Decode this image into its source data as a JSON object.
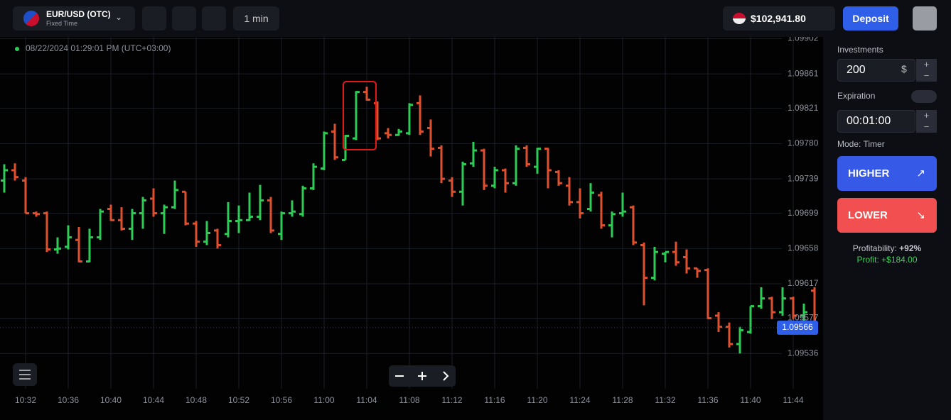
{
  "header": {
    "pair": "EUR/USD (OTC)",
    "mode": "Fixed Time",
    "timeframe": "1 min",
    "balance": "$102,941.80",
    "deposit": "Deposit"
  },
  "panel": {
    "investments_label": "Investments",
    "investment": "200",
    "currency": "$",
    "expiration_label": "Expiration",
    "expiration": "00:01:00",
    "mode": "Mode: Timer",
    "higher": "HIGHER",
    "lower": "LOWER",
    "profitability_label": "Profitability:",
    "profitability": "+92%",
    "profit_label": "Profit:",
    "profit": "+$184.00"
  },
  "chart_data": {
    "type": "ohlc",
    "timestamp": "08/22/2024 01:29:01 PM (UTC+03:00)",
    "x": [
      "10:30",
      "10:31",
      "10:32",
      "10:33",
      "10:34",
      "10:35",
      "10:36",
      "10:37",
      "10:38",
      "10:39",
      "10:40",
      "10:41",
      "10:42",
      "10:43",
      "10:44",
      "10:45",
      "10:46",
      "10:47",
      "10:48",
      "10:49",
      "10:50",
      "10:51",
      "10:52",
      "10:53",
      "10:54",
      "10:55",
      "10:56",
      "10:57",
      "10:58",
      "10:59",
      "11:00",
      "11:01",
      "11:02",
      "11:03",
      "11:04",
      "11:05",
      "11:06",
      "11:07",
      "11:08",
      "11:09",
      "11:10",
      "11:11",
      "11:12",
      "11:13",
      "11:14",
      "11:15",
      "11:16",
      "11:17",
      "11:18",
      "11:19",
      "11:20",
      "11:21",
      "11:22",
      "11:23",
      "11:24",
      "11:25",
      "11:26",
      "11:27",
      "11:28",
      "11:29",
      "11:30",
      "11:31",
      "11:32",
      "11:33",
      "11:34",
      "11:35",
      "11:36",
      "11:37",
      "11:38",
      "11:39",
      "11:40",
      "11:41",
      "11:42",
      "11:43",
      "11:44",
      "11:45",
      "11:46"
    ],
    "open": [
      1.09737,
      1.09749,
      1.09737,
      1.09699,
      1.09699,
      1.09657,
      1.0966,
      1.09668,
      1.09643,
      1.09671,
      1.09704,
      1.09691,
      1.09681,
      1.09699,
      1.09716,
      1.09699,
      1.09706,
      1.09724,
      1.09687,
      1.09666,
      1.09679,
      1.09675,
      1.0969,
      1.09691,
      1.09695,
      1.09714,
      1.09675,
      1.09699,
      1.09698,
      1.09728,
      1.09751,
      1.09794,
      1.09761,
      1.09786,
      1.0984,
      1.09827,
      1.09792,
      1.0979,
      1.09792,
      1.09827,
      1.09798,
      1.09775,
      1.09737,
      1.09724,
      1.09757,
      1.09772,
      1.09731,
      1.09749,
      1.09734,
      1.09775,
      1.09753,
      1.09774,
      1.09747,
      1.09731,
      1.09712,
      1.09704,
      1.0972,
      1.09685,
      1.09699,
      1.09706,
      1.09662,
      1.09624,
      1.09652,
      1.09654,
      1.09648,
      1.09635,
      1.09633,
      1.0958,
      1.09567,
      1.09547,
      1.09561,
      1.09591,
      1.096,
      1.09584,
      1.096,
      1.0958,
      1.09609
    ],
    "high": [
      1.09756,
      1.09757,
      1.09741,
      1.09701,
      1.09701,
      1.09671,
      1.09685,
      1.09683,
      1.09681,
      1.09704,
      1.09709,
      1.09706,
      1.09704,
      1.09718,
      1.09728,
      1.09709,
      1.09737,
      1.09724,
      1.0969,
      1.0969,
      1.09681,
      1.09712,
      1.09708,
      1.09723,
      1.09732,
      1.09718,
      1.09701,
      1.09714,
      1.09731,
      1.09757,
      1.09794,
      1.09803,
      1.0979,
      1.09841,
      1.09846,
      1.09829,
      1.09798,
      1.09797,
      1.09827,
      1.09836,
      1.09808,
      1.09778,
      1.09741,
      1.09759,
      1.09782,
      1.09774,
      1.09753,
      1.09751,
      1.09778,
      1.09778,
      1.09775,
      1.09775,
      1.09749,
      1.09741,
      1.09728,
      1.09734,
      1.09724,
      1.09701,
      1.09723,
      1.09708,
      1.09665,
      1.0966,
      1.09654,
      1.09666,
      1.09657,
      1.09635,
      1.09635,
      1.09584,
      1.09572,
      1.09567,
      1.09591,
      1.09613,
      1.09602,
      1.09613,
      1.09602,
      1.09594,
      1.09613
    ],
    "low": [
      1.09723,
      1.09737,
      1.09699,
      1.09695,
      1.09654,
      1.09652,
      1.09657,
      1.09642,
      1.09642,
      1.09668,
      1.0969,
      1.09679,
      1.09668,
      1.09681,
      1.09695,
      1.09675,
      1.09704,
      1.09685,
      1.0966,
      1.09662,
      1.09658,
      1.09671,
      1.09676,
      1.0969,
      1.09691,
      1.09676,
      1.09668,
      1.09695,
      1.09695,
      1.09726,
      1.09749,
      1.09761,
      1.09761,
      1.09784,
      1.0983,
      1.09784,
      1.09786,
      1.09789,
      1.0979,
      1.0979,
      1.09765,
      1.09734,
      1.09718,
      1.09708,
      1.09753,
      1.09726,
      1.09728,
      1.09723,
      1.09731,
      1.09753,
      1.09745,
      1.09728,
      1.09731,
      1.09708,
      1.09693,
      1.09701,
      1.09681,
      1.09671,
      1.09695,
      1.09662,
      1.09592,
      1.09621,
      1.09642,
      1.09638,
      1.09629,
      1.09624,
      1.09576,
      1.09561,
      1.09543,
      1.09536,
      1.09559,
      1.09588,
      1.09576,
      1.0958,
      1.09576,
      1.09569,
      1.09558
    ],
    "close": [
      1.09749,
      1.09741,
      1.09699,
      1.09698,
      1.09657,
      1.09658,
      1.09671,
      1.09643,
      1.09671,
      1.09701,
      1.09691,
      1.09681,
      1.09699,
      1.09714,
      1.09699,
      1.09706,
      1.09726,
      1.09687,
      1.09666,
      1.09676,
      1.09662,
      1.0969,
      1.09691,
      1.09695,
      1.09714,
      1.09679,
      1.09699,
      1.09701,
      1.09728,
      1.09753,
      1.09792,
      1.09764,
      1.09789,
      1.0984,
      1.09831,
      1.09786,
      1.0979,
      1.09794,
      1.09825,
      1.09794,
      1.09774,
      1.09739,
      1.09724,
      1.09756,
      1.09772,
      1.09731,
      1.09749,
      1.09734,
      1.09774,
      1.09756,
      1.09774,
      1.09749,
      1.09734,
      1.09712,
      1.09699,
      1.09723,
      1.09685,
      1.09698,
      1.09701,
      1.09665,
      1.09624,
      1.09654,
      1.09654,
      1.09642,
      1.09635,
      1.09632,
      1.09577,
      1.09567,
      1.09547,
      1.09563,
      1.09591,
      1.096,
      1.09584,
      1.096,
      1.0958,
      1.09584,
      1.09566
    ],
    "up_color": "#2ecc55",
    "down_color": "#e0502f",
    "ylim": [
      1.09495,
      1.09904
    ],
    "yticks": [
      1.09902,
      1.09861,
      1.09821,
      {
        "value": 1.0978,
        "label": "1.09780"
      },
      1.09739,
      1.09699,
      1.09658,
      1.09617,
      1.09577,
      1.09536
    ],
    "xticks": [
      "10:32",
      "10:36",
      "10:40",
      "10:44",
      "10:48",
      "10:52",
      "10:56",
      "11:00",
      "11:04",
      "11:08",
      "11:12",
      "11:16",
      "11:20",
      "11:24",
      "11:28",
      "11:32",
      "11:36",
      "11:40",
      "11:44"
    ],
    "current_price": 1.09566,
    "grid": true
  }
}
